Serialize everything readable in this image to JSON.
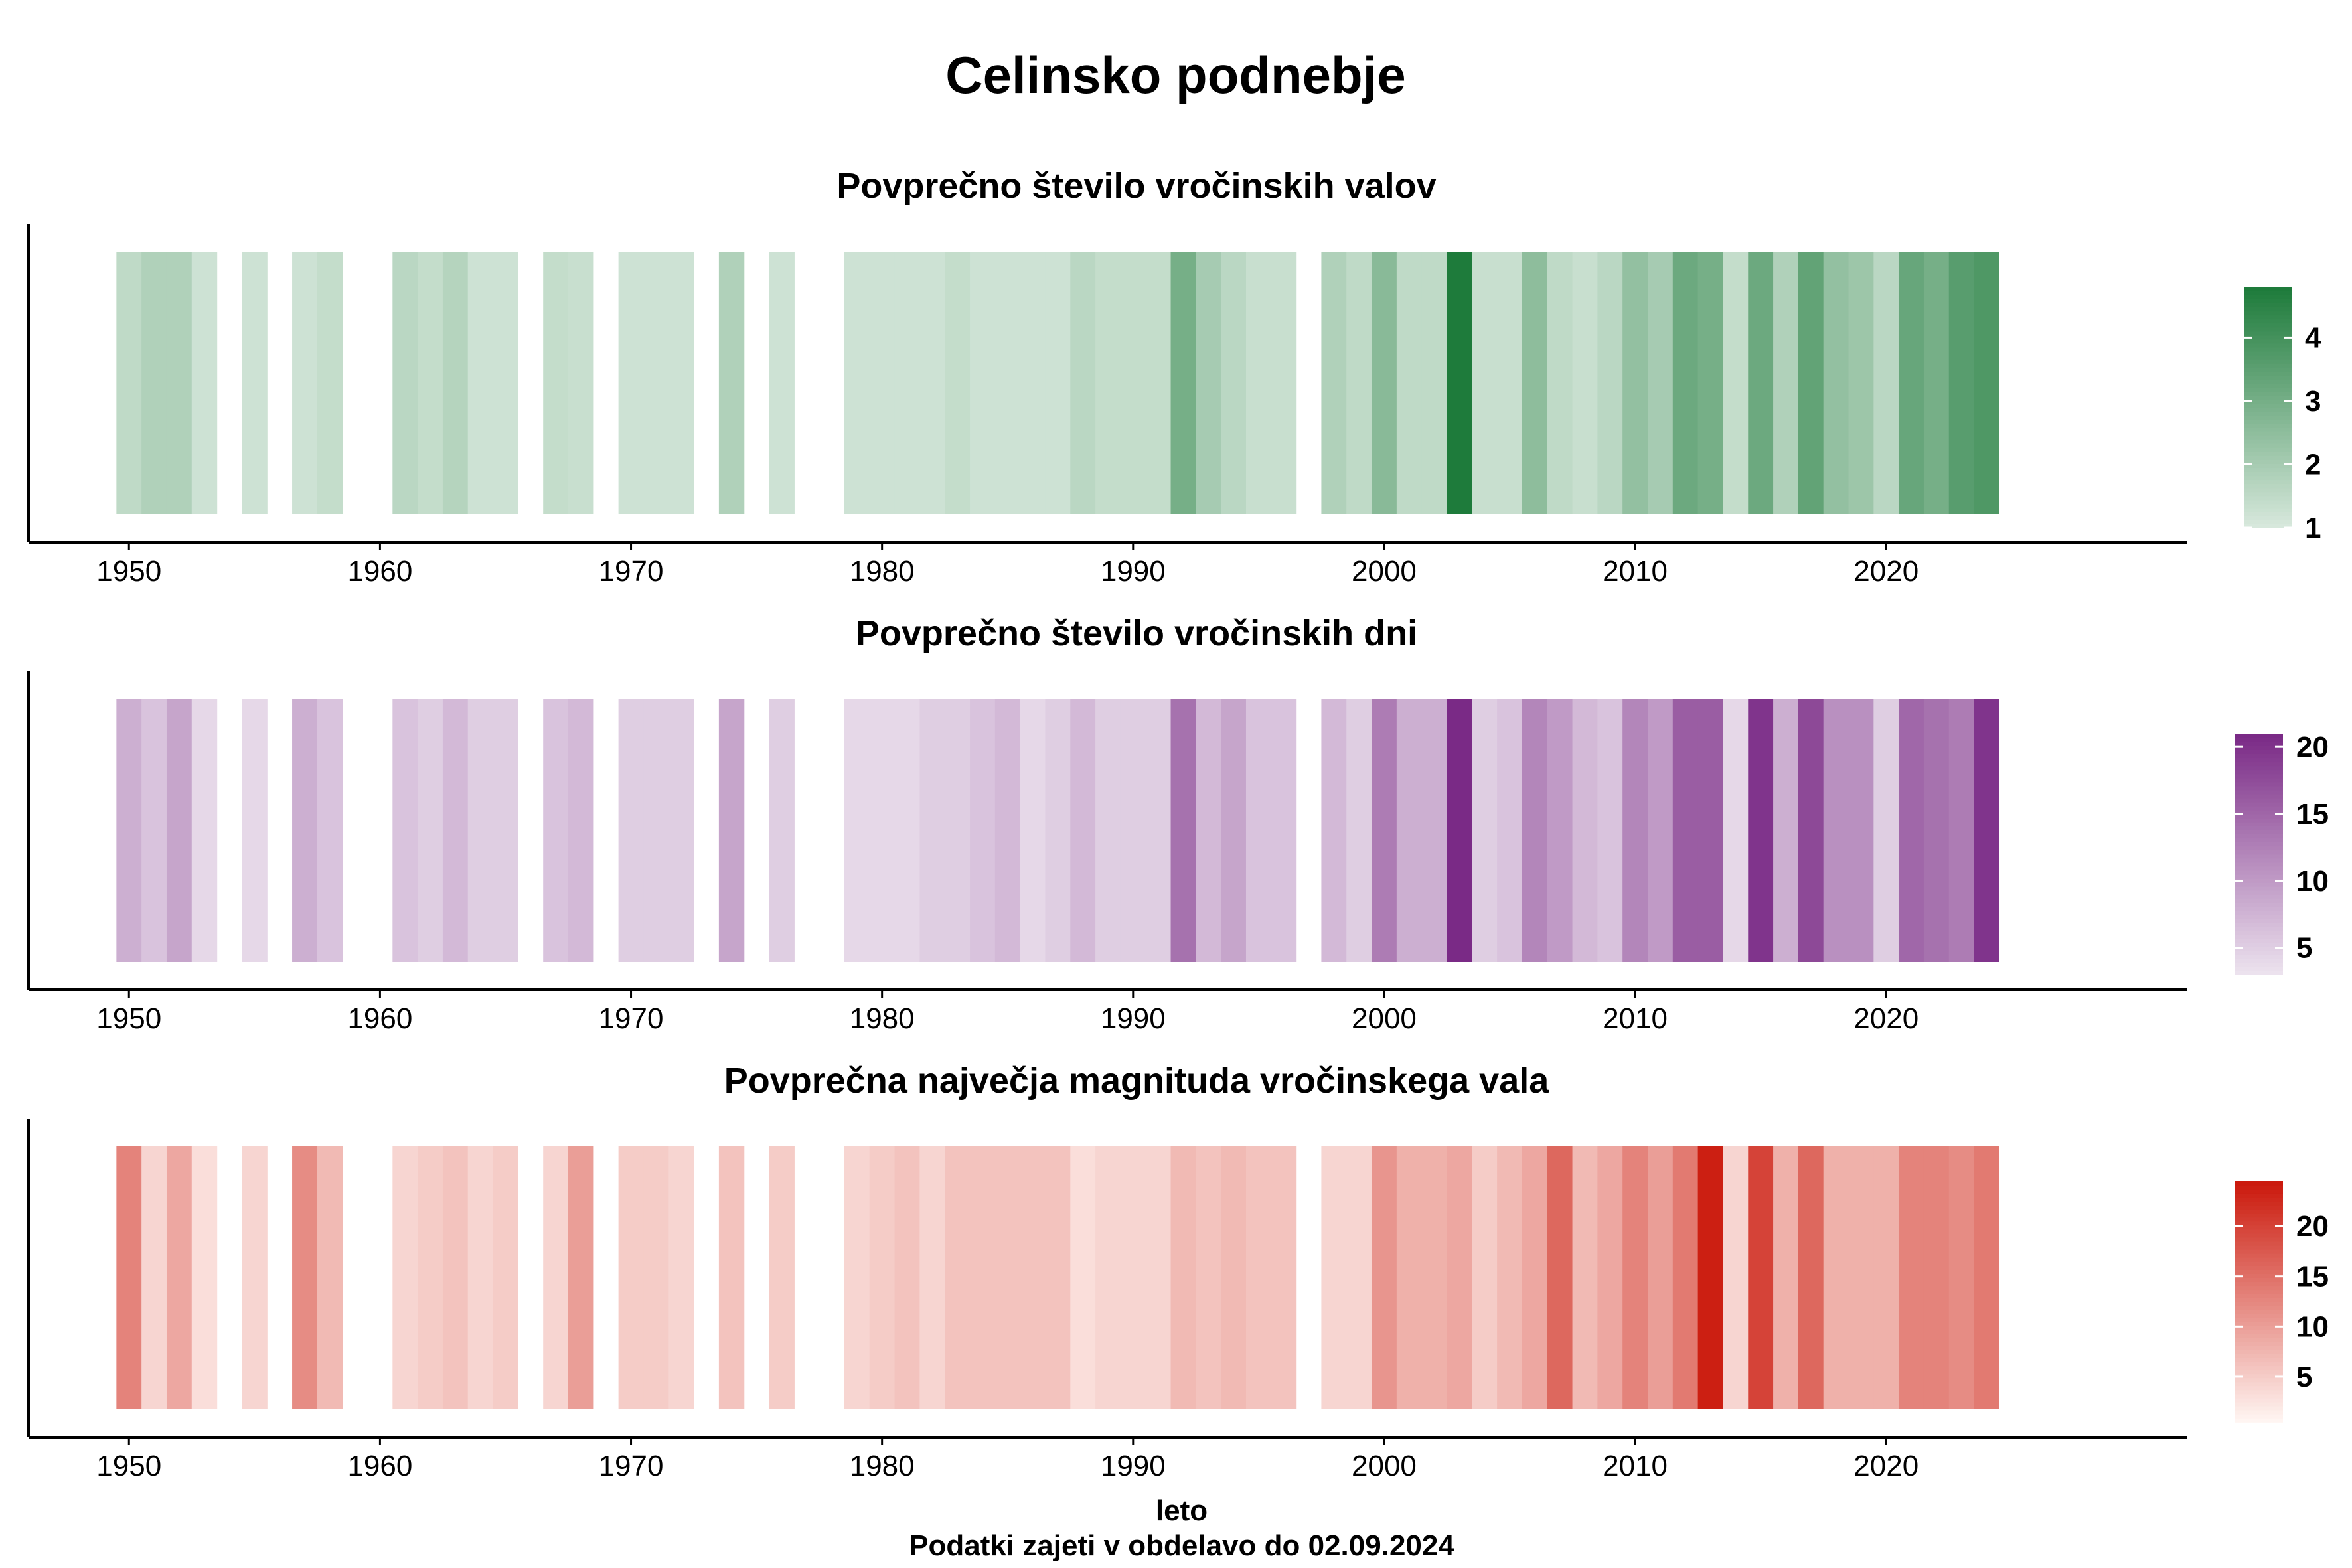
{
  "title": "Celinsko podnebje",
  "xlabel": "leto",
  "caption": "Podatki zajeti v obdelavo do 02.09.2024",
  "chart_data": [
    {
      "type": "heatmap",
      "title": "Povprečno število vročinskih valov",
      "xlim": [
        1946,
        2032
      ],
      "x_ticks": [
        "1950",
        "1960",
        "1970",
        "1980",
        "1990",
        "2000",
        "2010",
        "2020"
      ],
      "colorbar_range": [
        1,
        4.8
      ],
      "colorbar_ticks": [
        "1",
        "2",
        "3",
        "4"
      ],
      "colors": {
        "low": "#d7e8dc",
        "high": "#1e7b3b"
      },
      "years": [
        1950,
        1951,
        1952,
        1953,
        1955,
        1957,
        1958,
        1961,
        1962,
        1963,
        1964,
        1965,
        1967,
        1968,
        1970,
        1971,
        1972,
        1974,
        1976,
        1979,
        1980,
        1981,
        1982,
        1983,
        1984,
        1985,
        1986,
        1987,
        1988,
        1989,
        1990,
        1991,
        1992,
        1993,
        1994,
        1995,
        1996,
        1998,
        1999,
        2000,
        2001,
        2002,
        2003,
        2004,
        2005,
        2006,
        2007,
        2008,
        2009,
        2010,
        2011,
        2012,
        2013,
        2014,
        2015,
        2016,
        2017,
        2018,
        2019,
        2020,
        2021,
        2022,
        2023,
        2024
      ],
      "values": [
        1.5,
        1.8,
        1.8,
        1.2,
        1.2,
        1.2,
        1.4,
        1.6,
        1.4,
        1.7,
        1.2,
        1.2,
        1.4,
        1.3,
        1.2,
        1.2,
        1.2,
        1.8,
        1.2,
        1.2,
        1.2,
        1.2,
        1.2,
        1.4,
        1.2,
        1.2,
        1.2,
        1.2,
        1.6,
        1.4,
        1.4,
        1.4,
        3.0,
        2.0,
        1.6,
        1.3,
        1.3,
        1.8,
        1.5,
        2.6,
        1.5,
        1.5,
        4.8,
        1.3,
        1.3,
        2.5,
        1.5,
        1.3,
        1.6,
        2.4,
        2.0,
        3.2,
        3.0,
        1.4,
        3.2,
        1.8,
        3.4,
        2.4,
        2.2,
        1.6,
        3.3,
        3.0,
        3.6,
        3.8
      ]
    },
    {
      "type": "heatmap",
      "title": "Povprečno število vročinskih dni",
      "xlim": [
        1946,
        2032
      ],
      "x_ticks": [
        "1950",
        "1960",
        "1970",
        "1980",
        "1990",
        "2000",
        "2010",
        "2020"
      ],
      "colorbar_range": [
        3,
        21
      ],
      "colorbar_ticks": [
        "5",
        "10",
        "15",
        "20"
      ],
      "colors": {
        "low": "#ece2ee",
        "high": "#7a2a86"
      },
      "years": [
        1950,
        1951,
        1952,
        1953,
        1955,
        1957,
        1958,
        1961,
        1962,
        1963,
        1964,
        1965,
        1967,
        1968,
        1970,
        1971,
        1972,
        1974,
        1976,
        1979,
        1980,
        1981,
        1982,
        1983,
        1984,
        1985,
        1986,
        1987,
        1988,
        1989,
        1990,
        1991,
        1992,
        1993,
        1994,
        1995,
        1996,
        1998,
        1999,
        2000,
        2001,
        2002,
        2003,
        2004,
        2005,
        2006,
        2007,
        2008,
        2009,
        2010,
        2011,
        2012,
        2013,
        2014,
        2015,
        2016,
        2017,
        2018,
        2019,
        2020,
        2021,
        2022,
        2023,
        2024
      ],
      "values": [
        8,
        6,
        9,
        4,
        4,
        8,
        6,
        6,
        5,
        7,
        5,
        5,
        6,
        7,
        5,
        5,
        5,
        9,
        5,
        4,
        4,
        4,
        5,
        5,
        6,
        7,
        4,
        5,
        7,
        5,
        5,
        5,
        14,
        7,
        9,
        6,
        6,
        7,
        5,
        13,
        8,
        8,
        21,
        5,
        6,
        12,
        10,
        7,
        6,
        12,
        10,
        16,
        16,
        4,
        20,
        8,
        18,
        11,
        11,
        5,
        15,
        14,
        13,
        20
      ]
    },
    {
      "type": "heatmap",
      "title": "Povprečna največja magnituda vročinskega vala",
      "xlim": [
        1946,
        2032
      ],
      "x_ticks": [
        "1950",
        "1960",
        "1970",
        "1980",
        "1990",
        "2000",
        "2010",
        "2020"
      ],
      "colorbar_range": [
        0.5,
        24.5
      ],
      "colorbar_ticks": [
        "5",
        "10",
        "15",
        "20"
      ],
      "colors": {
        "low": "#fff5f2",
        "high": "#cb1a0d"
      },
      "years": [
        1950,
        1951,
        1952,
        1953,
        1955,
        1957,
        1958,
        1961,
        1962,
        1963,
        1964,
        1965,
        1967,
        1968,
        1970,
        1971,
        1972,
        1974,
        1976,
        1979,
        1980,
        1981,
        1982,
        1983,
        1984,
        1985,
        1986,
        1987,
        1988,
        1989,
        1990,
        1991,
        1992,
        1993,
        1994,
        1995,
        1996,
        1998,
        1999,
        2000,
        2001,
        2002,
        2003,
        2004,
        2005,
        2006,
        2007,
        2008,
        2009,
        2010,
        2011,
        2012,
        2013,
        2014,
        2015,
        2016,
        2017,
        2018,
        2019,
        2020,
        2021,
        2022,
        2023,
        2024
      ],
      "values": [
        13,
        4,
        9,
        3,
        4,
        12,
        7,
        4,
        5,
        6,
        4,
        5,
        4,
        10,
        5,
        5,
        4,
        6,
        5,
        4,
        5,
        6,
        4,
        6,
        6,
        6,
        6,
        6,
        3,
        4,
        4,
        4,
        7,
        6,
        7,
        6,
        6,
        4,
        4,
        11,
        8,
        8,
        9,
        5,
        7,
        9,
        16,
        7,
        9,
        13,
        10,
        14,
        24,
        4,
        20,
        8,
        16,
        8,
        8,
        8,
        13,
        13,
        12,
        14
      ]
    }
  ]
}
